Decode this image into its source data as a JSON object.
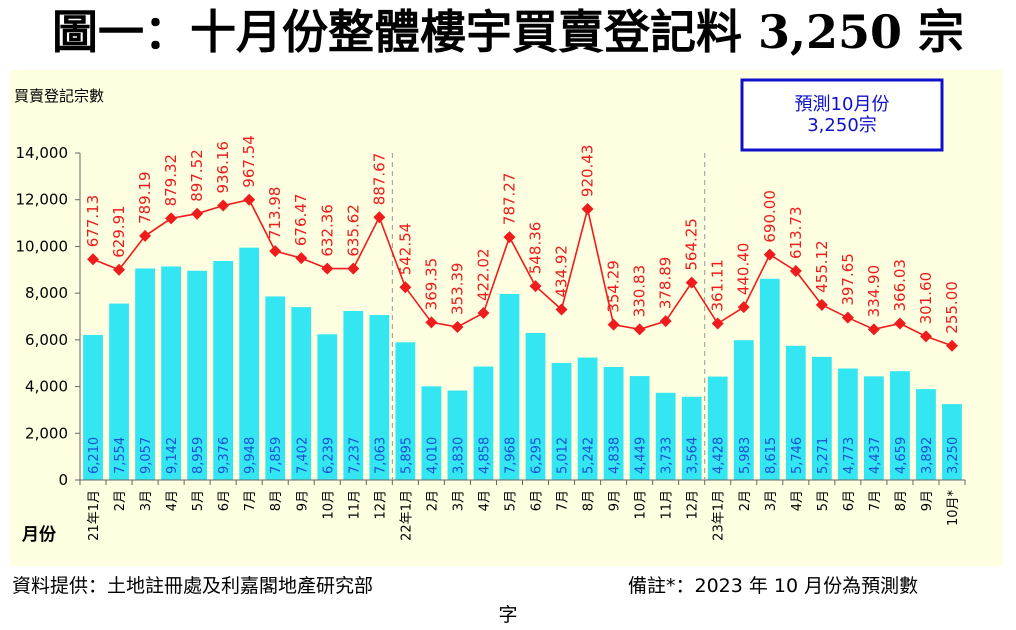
{
  "chart_data": {
    "type": "bar",
    "title": "圖一：十月份整體樓宇買賣登記料 3,250 宗",
    "ylabel": "買賣登記宗數",
    "xlabel": "月份",
    "ylim": [
      0,
      14000
    ],
    "yticks": [
      "0",
      "2,000",
      "4,000",
      "6,000",
      "8,000",
      "10,000",
      "12,000",
      "14,000"
    ],
    "grid": false,
    "categories": [
      "21年1月",
      "2月",
      "3月",
      "4月",
      "5月",
      "6月",
      "7月",
      "8月",
      "9月",
      "10月",
      "11月",
      "12月",
      "22年1月",
      "2月",
      "3月",
      "4月",
      "5月",
      "6月",
      "7月",
      "8月",
      "9月",
      "10月",
      "11月",
      "12月",
      "23年1月",
      "2月",
      "3月",
      "4月",
      "5月",
      "6月",
      "7月",
      "8月",
      "9月",
      "10月*"
    ],
    "series": [
      {
        "type": "bar",
        "values": [
          6210,
          7554,
          9057,
          9142,
          8959,
          9376,
          9948,
          7859,
          7402,
          6239,
          7237,
          7063,
          5895,
          4010,
          3830,
          4858,
          7968,
          6295,
          5012,
          5242,
          4838,
          4449,
          3733,
          3564,
          4428,
          5983,
          8615,
          5746,
          5271,
          4773,
          4437,
          4659,
          3892,
          3250
        ],
        "labels": [
          "6,210",
          "7,554",
          "9,057",
          "9,142",
          "8,959",
          "9,376",
          "9,948",
          "7,859",
          "7,402",
          "6,239",
          "7,237",
          "7,063",
          "5,895",
          "4,010",
          "3,830",
          "4,858",
          "7,968",
          "6,295",
          "5,012",
          "5,242",
          "4,838",
          "4,449",
          "3,733",
          "3,564",
          "4,428",
          "5,983",
          "8,615",
          "5,746",
          "5,271",
          "4,773",
          "4,437",
          "4,659",
          "3,892",
          "3,250"
        ]
      },
      {
        "type": "line",
        "values": [
          677.13,
          629.91,
          789.19,
          879.32,
          897.52,
          936.16,
          967.54,
          713.98,
          676.47,
          632.36,
          635.62,
          887.67,
          542.54,
          369.35,
          353.39,
          422.02,
          787.27,
          548.36,
          434.92,
          920.43,
          354.29,
          330.83,
          378.89,
          564.25,
          361.11,
          440.4,
          690.0,
          613.73,
          455.12,
          397.65,
          334.9,
          366.03,
          301.6,
          255.0
        ],
        "labels": [
          "677.13",
          "629.91",
          "789.19",
          "879.32",
          "897.52",
          "936.16",
          "967.54",
          "713.98",
          "676.47",
          "632.36",
          "635.62",
          "887.67",
          "542.54",
          "369.35",
          "353.39",
          "422.02",
          "787.27",
          "548.36",
          "434.92",
          "920.43",
          "354.29",
          "330.83",
          "378.89",
          "564.25",
          "361.11",
          "440.40",
          "690.00",
          "613.73",
          "455.12",
          "397.65",
          "334.90",
          "366.03",
          "301.60",
          "255.00"
        ],
        "plot_y": [
          9450,
          9000,
          10450,
          11200,
          11400,
          11750,
          12000,
          9800,
          9500,
          9050,
          9050,
          11250,
          8250,
          6750,
          6550,
          7150,
          10400,
          8300,
          7300,
          11600,
          6650,
          6450,
          6800,
          8450,
          6700,
          7400,
          9650,
          8950,
          7500,
          6950,
          6450,
          6700,
          6150,
          5750
        ]
      }
    ],
    "year_dividers_after_index": [
      11,
      23
    ],
    "annotation": "預測10月份\n3,250宗",
    "colors": {
      "bar": "#33e6f2",
      "line": "#ee1c1c",
      "bar_label": "#1c4fd6",
      "plot_bg": "#fefee0",
      "axis": "#666666",
      "annotation_border": "#1010cc",
      "annotation_text": "#1010cc"
    }
  },
  "footer": {
    "source": "資料提供：土地註冊處及利嘉閣地產研究部",
    "remark": "備註*：2023 年 10 月份為預測數",
    "remark_wrap": "字"
  }
}
